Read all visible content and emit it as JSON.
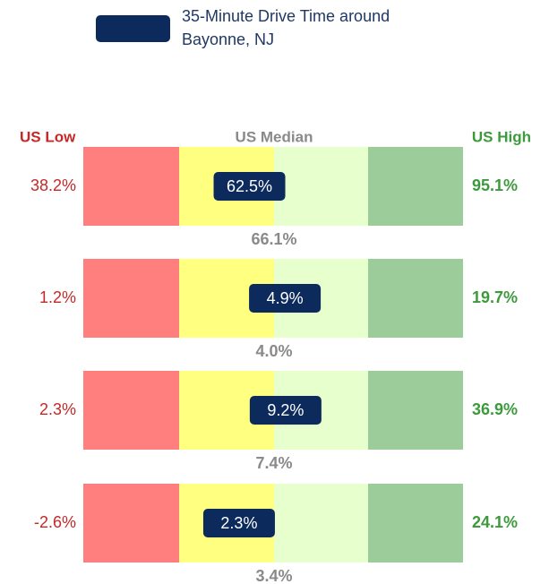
{
  "chart_data": {
    "type": "gauge",
    "legend": {
      "name": "35-Minute Drive Time around Bayonne, NJ",
      "lines": [
        "35-Minute Drive Time around",
        "Bayonne, NJ"
      ],
      "color": "#0c2a5c"
    },
    "headers": {
      "low": "US Low",
      "median": "US Median",
      "high": "US High"
    },
    "band_colors": [
      "#ff7f7f",
      "#ffff80",
      "#e6ffcc",
      "#9ccc99"
    ],
    "rows": [
      {
        "low": {
          "value": 38.2,
          "label": "38.2%"
        },
        "median": {
          "value": 66.1,
          "label": "66.1%"
        },
        "high": {
          "value": 95.1,
          "label": "95.1%"
        },
        "value": {
          "value": 62.5,
          "label": "62.5%"
        }
      },
      {
        "low": {
          "value": 1.2,
          "label": "1.2%"
        },
        "median": {
          "value": 4.0,
          "label": "4.0%"
        },
        "high": {
          "value": 19.7,
          "label": "19.7%"
        },
        "value": {
          "value": 4.9,
          "label": "4.9%"
        }
      },
      {
        "low": {
          "value": 2.3,
          "label": "2.3%"
        },
        "median": {
          "value": 7.4,
          "label": "7.4%"
        },
        "high": {
          "value": 36.9,
          "label": "36.9%"
        },
        "value": {
          "value": 9.2,
          "label": "9.2%"
        }
      },
      {
        "low": {
          "value": -2.6,
          "label": "-2.6%"
        },
        "median": {
          "value": 3.4,
          "label": "3.4%"
        },
        "high": {
          "value": 24.1,
          "label": "24.1%"
        },
        "value": {
          "value": 2.3,
          "label": "2.3%"
        }
      }
    ]
  }
}
